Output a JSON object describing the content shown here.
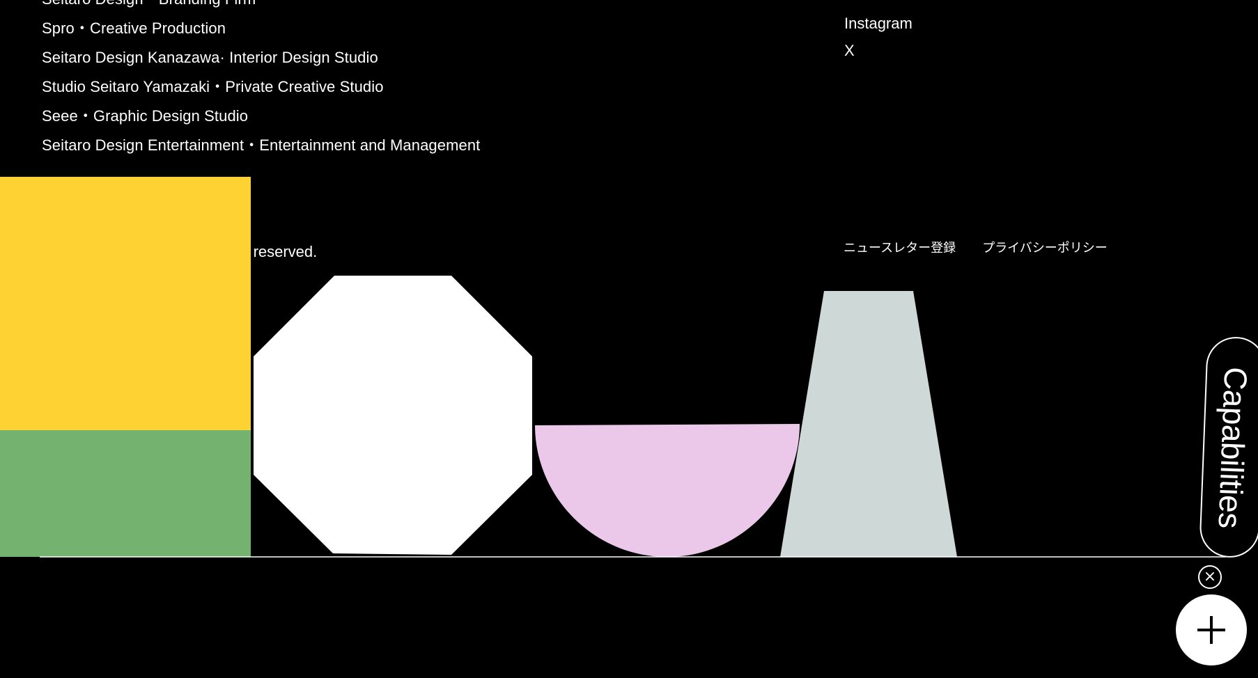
{
  "companies": [
    "Seitaro Design・Branding Firm",
    "Spro・Creative Production",
    "Seitaro Design Kanazawa· Interior Design Studio",
    "Studio Seitaro Yamazaki・Private Creative Studio",
    "Seee・Graphic Design Studio",
    "Seitaro Design Entertainment・Entertainment and Management"
  ],
  "social": [
    "Instagram",
    "X"
  ],
  "copyright": "© Seitaro Design Inc. All rights reserved.",
  "legal_links": [
    "ニュースレター登録",
    "プライバシーポリシー"
  ],
  "capabilities_label": "Capabilities",
  "colors": {
    "background": "#000000",
    "yellow": "#FDD232",
    "green": "#74B26F",
    "white": "#FFFFFF",
    "pink": "#EBC8E9",
    "grey": "#CED8D6"
  },
  "icons": {
    "close": "close-icon",
    "plus": "plus-icon"
  }
}
